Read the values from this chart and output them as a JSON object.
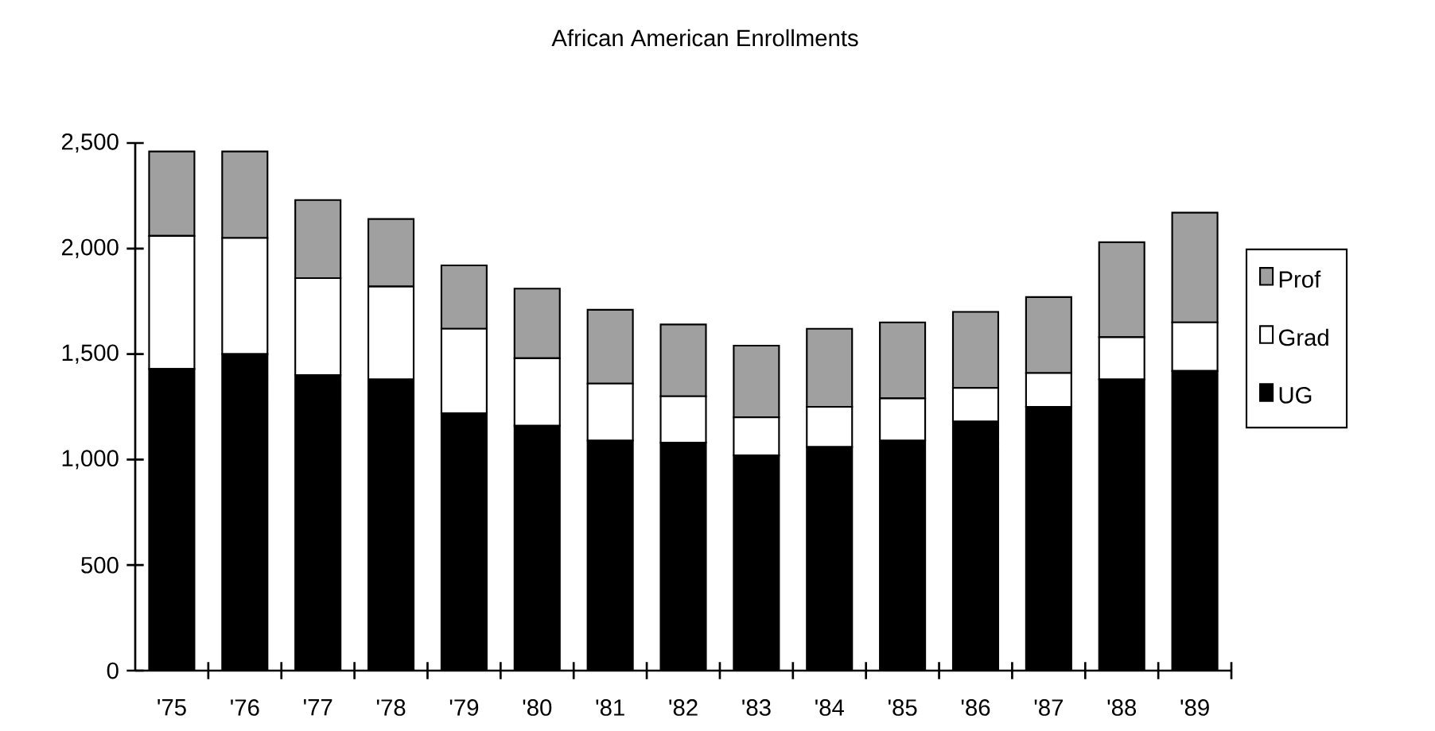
{
  "chart_data": {
    "type": "bar",
    "title": "African American Enrollments",
    "stacked": true,
    "categories": [
      "'75",
      "'76",
      "'77",
      "'78",
      "'79",
      "'80",
      "'81",
      "'82",
      "'83",
      "'84",
      "'85",
      "'86",
      "'87",
      "'88",
      "'89"
    ],
    "series": [
      {
        "name": "UG",
        "color": "#000000",
        "values": [
          1430,
          1500,
          1400,
          1380,
          1220,
          1160,
          1090,
          1080,
          1020,
          1060,
          1090,
          1180,
          1250,
          1380,
          1420
        ]
      },
      {
        "name": "Grad",
        "color": "#ffffff",
        "values": [
          630,
          550,
          460,
          440,
          400,
          320,
          270,
          220,
          180,
          190,
          200,
          160,
          160,
          200,
          230
        ]
      },
      {
        "name": "Prof",
        "color": "#a0a0a0",
        "values": [
          400,
          410,
          370,
          320,
          300,
          330,
          350,
          340,
          340,
          370,
          360,
          360,
          360,
          450,
          520
        ]
      }
    ],
    "ylim": [
      0,
      2500
    ],
    "yticks": [
      0,
      500,
      {
        "value": 1000,
        "label": "1,000"
      },
      {
        "value": 1500,
        "label": "1,500"
      },
      {
        "value": 2000,
        "label": "2,000"
      },
      {
        "value": 2500,
        "label": "2,500"
      }
    ],
    "legend": "right",
    "grid": false
  }
}
